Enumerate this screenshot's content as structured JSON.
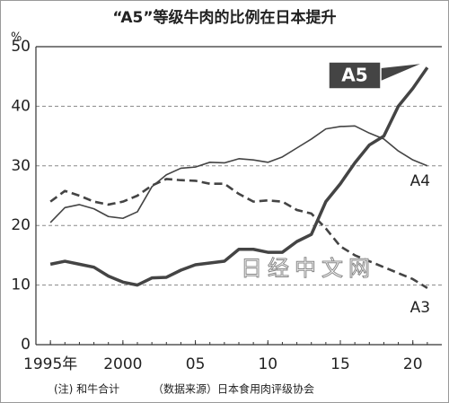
{
  "chart_data": {
    "type": "line",
    "title": "“A5”等级牛肉的比例在日本提升",
    "ylabel": "%",
    "note": "(注) 和牛合计",
    "source": "（数据来源）日本食用肉评级协会",
    "watermark": "日经中文网",
    "x": [
      1995,
      1996,
      1997,
      1998,
      1999,
      2000,
      2001,
      2002,
      2003,
      2004,
      2005,
      2006,
      2007,
      2008,
      2009,
      2010,
      2011,
      2012,
      2013,
      2014,
      2015,
      2016,
      2017,
      2018,
      2019,
      2020,
      2021
    ],
    "series": [
      {
        "name": "A5",
        "color": "#444444",
        "style": "solid",
        "width": 3.5,
        "values": [
          13.5,
          14,
          13.5,
          13,
          11.5,
          10.5,
          10,
          11.2,
          11.3,
          12.5,
          13.4,
          13.7,
          14,
          16,
          16,
          15.5,
          15.5,
          17.3,
          18.5,
          24,
          27,
          30.5,
          33.5,
          35,
          40,
          43,
          46.5
        ]
      },
      {
        "name": "A4",
        "color": "#444444",
        "style": "solid",
        "width": 1.6,
        "values": [
          20.5,
          23,
          23.5,
          22.8,
          21.5,
          21.2,
          22.3,
          26.5,
          28.5,
          29.6,
          29.8,
          30.6,
          30.5,
          31.2,
          31,
          30.6,
          31.5,
          33,
          34.5,
          36.2,
          36.6,
          36.7,
          35.5,
          34.5,
          32.5,
          31,
          30
        ]
      },
      {
        "name": "A3",
        "color": "#444444",
        "style": "dashed",
        "width": 2.6,
        "values": [
          24,
          25.8,
          25,
          24,
          23.5,
          24,
          25,
          26.7,
          27.8,
          27.6,
          27.5,
          27,
          27,
          25.3,
          24,
          24.2,
          24,
          22.6,
          22,
          19.5,
          16.5,
          15,
          14,
          13,
          12,
          11,
          9.5
        ]
      }
    ],
    "xlim": [
      1994,
      2022
    ],
    "xticks": [
      {
        "value": 1995,
        "label": "1995年"
      },
      2000,
      {
        "value": 2005,
        "label": "05"
      },
      {
        "value": 2010,
        "label": "10"
      },
      {
        "value": 2015,
        "label": "15"
      },
      {
        "value": 2020,
        "label": "20"
      }
    ],
    "ylim": [
      0,
      50
    ],
    "yticks": [
      0,
      10,
      20,
      30,
      40,
      50
    ],
    "grid": true
  }
}
